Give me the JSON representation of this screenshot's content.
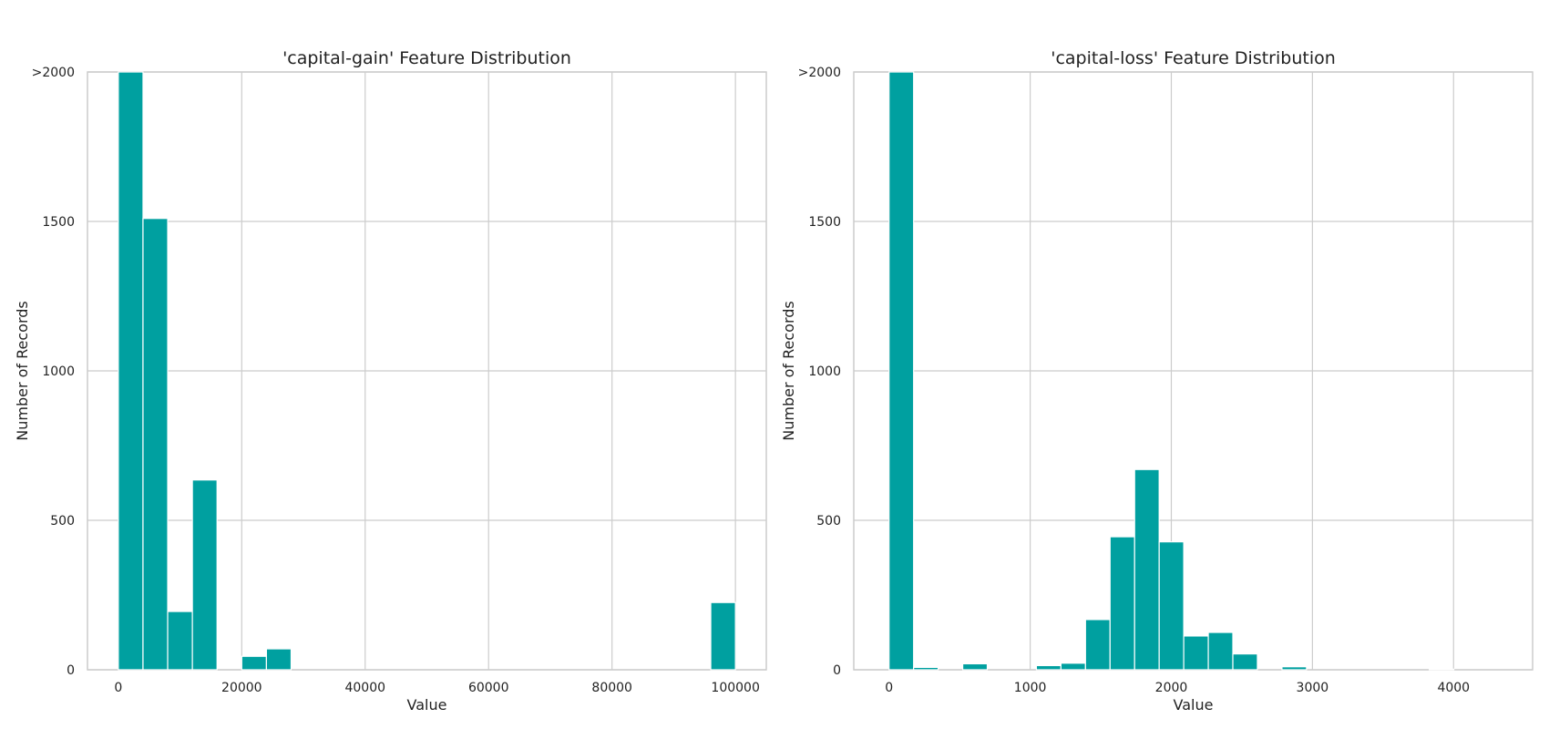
{
  "chart_data": [
    {
      "type": "bar",
      "title": "'capital-gain' Feature Distribution",
      "xlabel": "Value",
      "ylabel": "Number of Records",
      "xlim": [
        -5000,
        105000
      ],
      "ylim": [
        0,
        2000
      ],
      "x_ticks": [
        0,
        20000,
        40000,
        60000,
        80000,
        100000
      ],
      "y_ticks": [
        0,
        500,
        1000,
        1500,
        2000
      ],
      "y_tick_labels": [
        "0",
        "500",
        "1000",
        "1500",
        ">2000"
      ],
      "grid": true,
      "color": "#00A0A0",
      "bins": [
        {
          "x0": 0,
          "x1": 4000,
          "value": 2000
        },
        {
          "x0": 4000,
          "x1": 8000,
          "value": 1510
        },
        {
          "x0": 8000,
          "x1": 12000,
          "value": 195
        },
        {
          "x0": 12000,
          "x1": 16000,
          "value": 635
        },
        {
          "x0": 20000,
          "x1": 24000,
          "value": 45
        },
        {
          "x0": 24000,
          "x1": 28000,
          "value": 70
        },
        {
          "x0": 96000,
          "x1": 100000,
          "value": 225
        }
      ]
    },
    {
      "type": "bar",
      "title": "'capital-loss' Feature Distribution",
      "xlabel": "Value",
      "ylabel": "Number of Records",
      "xlim": [
        -250,
        4560
      ],
      "ylim": [
        0,
        2000
      ],
      "x_ticks": [
        0,
        1000,
        2000,
        3000,
        4000
      ],
      "y_ticks": [
        0,
        500,
        1000,
        1500,
        2000
      ],
      "y_tick_labels": [
        "0",
        "500",
        "1000",
        "1500",
        ">2000"
      ],
      "grid": true,
      "color": "#00A0A0",
      "bins": [
        {
          "x0": 0,
          "x1": 174,
          "value": 2000
        },
        {
          "x0": 174,
          "x1": 348,
          "value": 8
        },
        {
          "x0": 522,
          "x1": 696,
          "value": 20
        },
        {
          "x0": 1044,
          "x1": 1218,
          "value": 14
        },
        {
          "x0": 1218,
          "x1": 1392,
          "value": 22
        },
        {
          "x0": 1392,
          "x1": 1566,
          "value": 168
        },
        {
          "x0": 1566,
          "x1": 1740,
          "value": 445
        },
        {
          "x0": 1740,
          "x1": 1914,
          "value": 670
        },
        {
          "x0": 1914,
          "x1": 2088,
          "value": 428
        },
        {
          "x0": 2088,
          "x1": 2262,
          "value": 113
        },
        {
          "x0": 2262,
          "x1": 2436,
          "value": 125
        },
        {
          "x0": 2436,
          "x1": 2610,
          "value": 53
        },
        {
          "x0": 2784,
          "x1": 2958,
          "value": 10
        },
        {
          "x0": 3828,
          "x1": 4002,
          "value": 2
        }
      ]
    }
  ]
}
